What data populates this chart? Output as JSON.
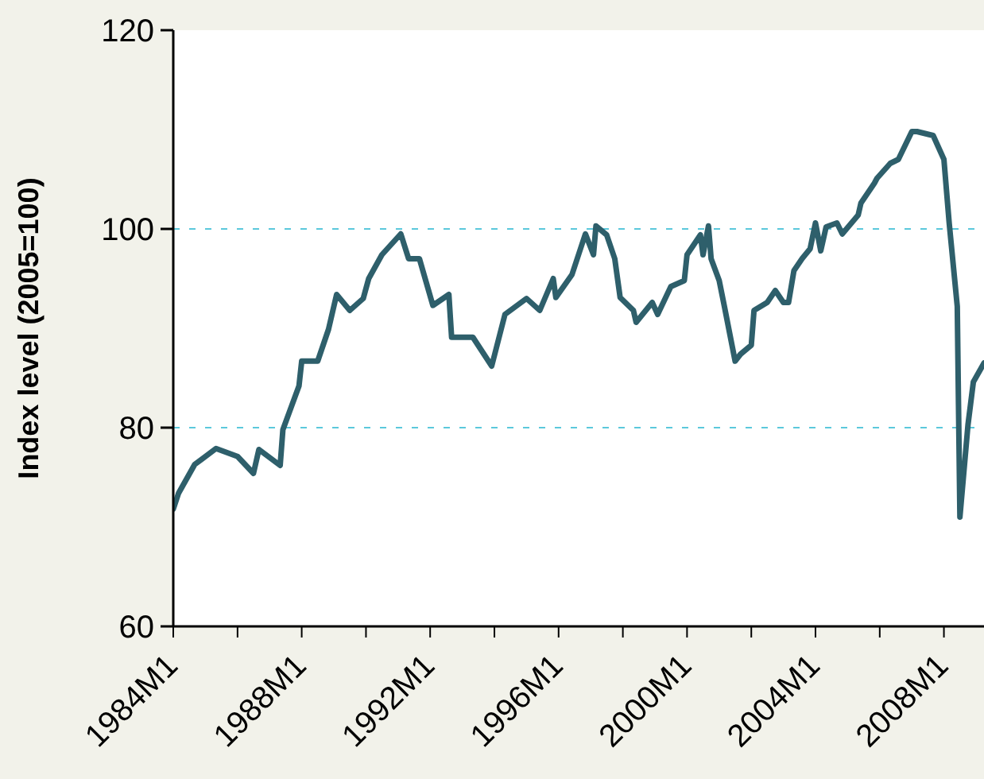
{
  "chart_data": {
    "type": "line",
    "ylabel": "Index level (2005=100)",
    "x": [
      "1984-01",
      "1984-03",
      "1984-09",
      "1985-05",
      "1986-01",
      "1986-07",
      "1986-09",
      "1987-05",
      "1987-06",
      "1987-12",
      "1988-01",
      "1988-07",
      "1988-11",
      "1989-02",
      "1989-07",
      "1989-12",
      "1990-02",
      "1990-07",
      "1991-02",
      "1991-05",
      "1991-09",
      "1992-02",
      "1992-08",
      "1992-09",
      "1993-05",
      "1993-12",
      "1994-05",
      "1995-01",
      "1995-06",
      "1995-11",
      "1995-12",
      "1996-06",
      "1996-11",
      "1997-02",
      "1997-03",
      "1997-07",
      "1997-10",
      "1997-12",
      "1998-05",
      "1998-06",
      "1998-12",
      "1999-02",
      "1999-07",
      "1999-12",
      "2000-01",
      "2000-06",
      "2000-07",
      "2000-09",
      "2000-10",
      "2001-01",
      "2001-03",
      "2001-07",
      "2001-09",
      "2002-01",
      "2002-02",
      "2002-07",
      "2002-10",
      "2003-01",
      "2003-03",
      "2003-05",
      "2003-08",
      "2003-11",
      "2004-01",
      "2004-03",
      "2004-05",
      "2004-09",
      "2004-11",
      "2005-05",
      "2005-06",
      "2005-11",
      "2005-12",
      "2006-05",
      "2006-08",
      "2007-01",
      "2007-03",
      "2007-09",
      "2008-01",
      "2008-03",
      "2008-06",
      "2008-07",
      "2008-10",
      "2008-12",
      "2009-04"
    ],
    "series": [
      {
        "color": "#2e5f6b",
        "values": [
          71.8,
          73.4,
          76.3,
          77.9,
          77.1,
          75.4,
          77.8,
          76.2,
          79.8,
          84.2,
          86.7,
          86.7,
          89.9,
          93.4,
          91.8,
          93.0,
          95.0,
          97.4,
          99.5,
          97.0,
          97.0,
          92.3,
          93.4,
          89.1,
          89.1,
          86.2,
          91.4,
          93.0,
          91.8,
          95.0,
          93.1,
          95.4,
          99.5,
          97.4,
          100.3,
          99.4,
          97.0,
          93.1,
          91.8,
          90.6,
          92.6,
          91.4,
          94.2,
          94.8,
          97.4,
          99.4,
          97.4,
          100.3,
          97.0,
          94.8,
          92.2,
          86.7,
          87.4,
          88.3,
          91.8,
          92.6,
          93.8,
          92.6,
          92.6,
          95.8,
          97.0,
          98.0,
          100.6,
          97.8,
          100.2,
          100.6,
          99.5,
          101.4,
          102.6,
          104.6,
          105.1,
          106.6,
          107.0,
          109.8,
          109.8,
          109.4,
          107.0,
          100.6,
          92.2,
          71.0,
          80.3,
          84.6,
          86.5
        ]
      }
    ],
    "xlim": [
      "1984-01",
      "2009-04"
    ],
    "xticks": [
      {
        "value": "1984-01",
        "label": "1984M1"
      },
      {
        "value": "1986-01",
        "label": null
      },
      {
        "value": "1988-01",
        "label": "1988M1"
      },
      {
        "value": "1990-01",
        "label": null
      },
      {
        "value": "1992-01",
        "label": "1992M1"
      },
      {
        "value": "1994-01",
        "label": null
      },
      {
        "value": "1996-01",
        "label": "1996M1"
      },
      {
        "value": "1998-01",
        "label": null
      },
      {
        "value": "2000-01",
        "label": "2000M1"
      },
      {
        "value": "2002-01",
        "label": null
      },
      {
        "value": "2004-01",
        "label": "2004M1"
      },
      {
        "value": "2006-01",
        "label": null
      },
      {
        "value": "2008-01",
        "label": "2008M1"
      }
    ],
    "ylim": [
      60,
      120
    ],
    "yticks": [
      60,
      80,
      100,
      120
    ],
    "grid": "y",
    "marker": "none",
    "line_style": "solid"
  }
}
